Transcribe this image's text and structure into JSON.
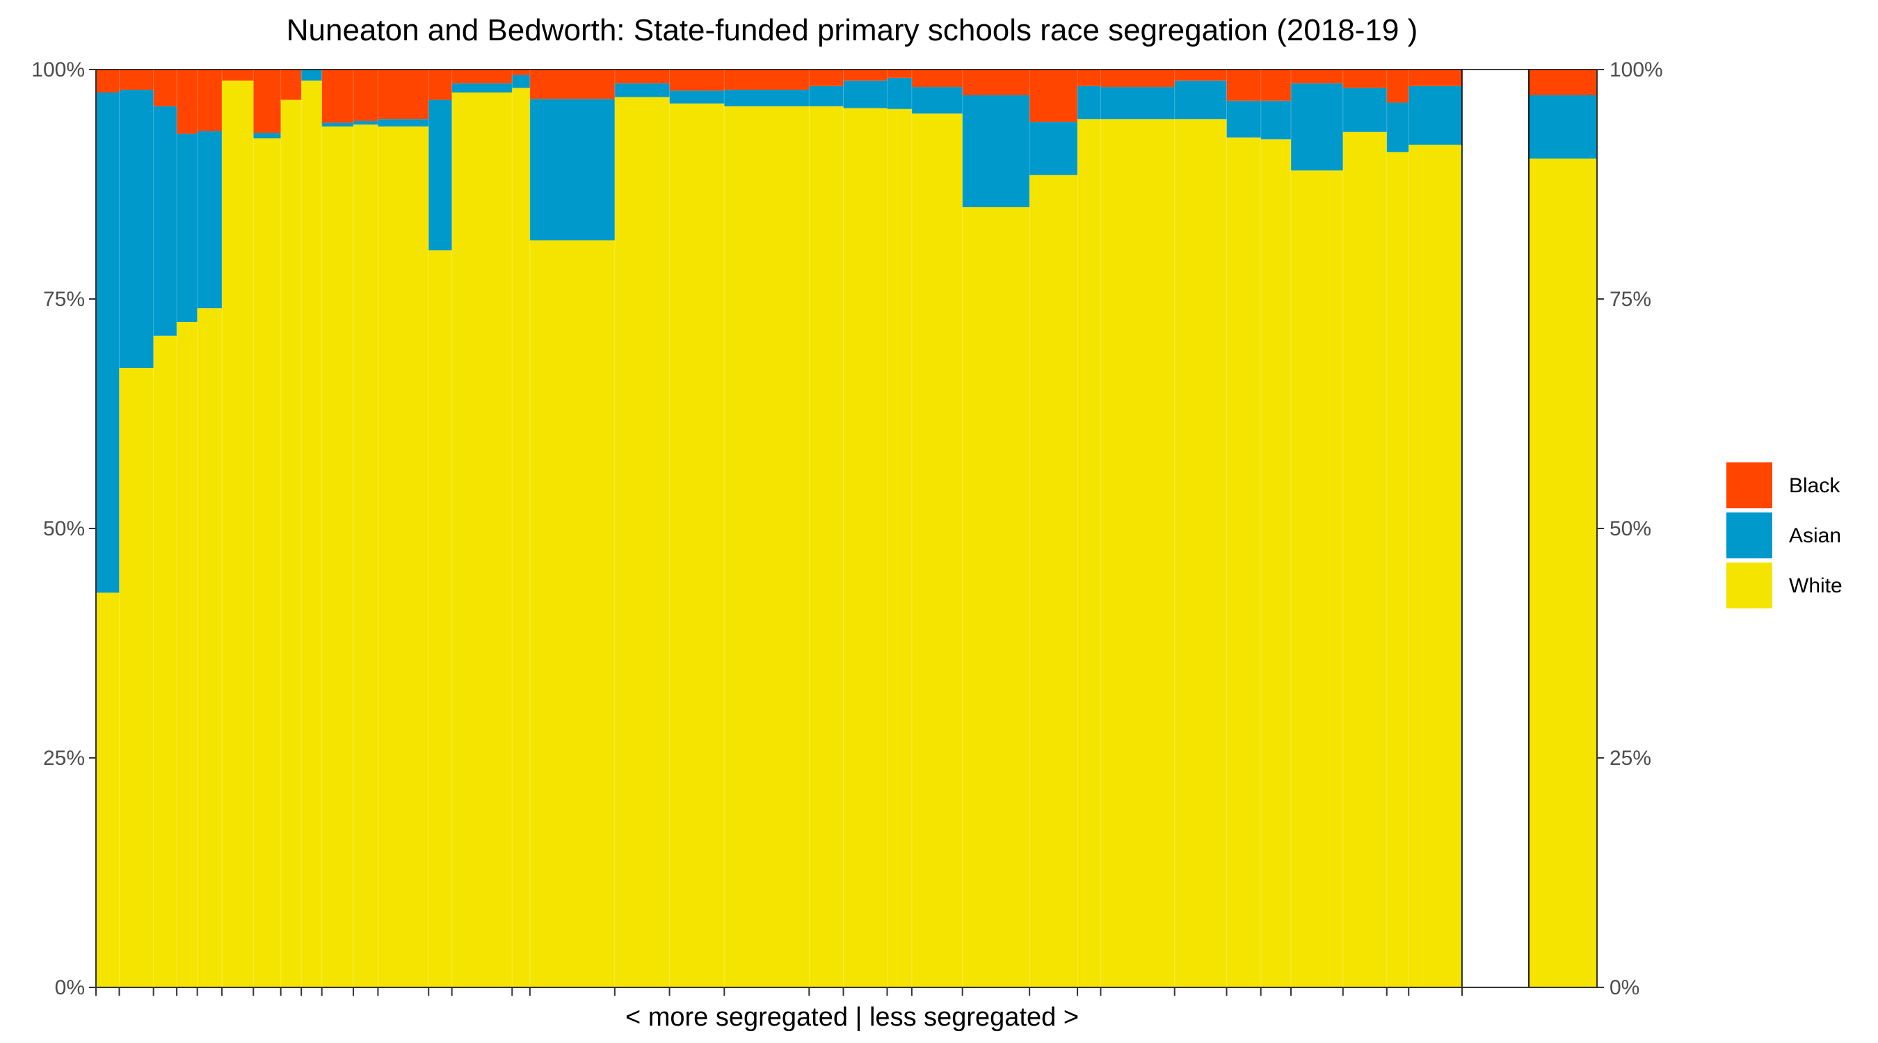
{
  "chart_data": {
    "type": "bar",
    "subtype": "variable-width stacked percentage (mosaic)",
    "title": "Nuneaton and Bedworth: State-funded primary schools race segregation (2018-19 )",
    "xlabel": "< more segregated | less segregated >",
    "ylabel": "",
    "ylim": [
      0,
      100
    ],
    "y_ticks": [
      "0%",
      "25%",
      "50%",
      "75%",
      "100%"
    ],
    "y_tick_values": [
      0,
      25,
      50,
      75,
      100
    ],
    "secondary_y_axis": true,
    "grid": false,
    "legend_position": "right",
    "legend": [
      {
        "name": "Black",
        "color": "#FF4500"
      },
      {
        "name": "Asian",
        "color": "#0099CC"
      },
      {
        "name": "White",
        "color": "#F5E400"
      }
    ],
    "x_scale_total": 100,
    "schools": [
      {
        "width": 1.7,
        "white": 43.0,
        "asian": 54.5
      },
      {
        "width": 2.5,
        "white": 67.5,
        "asian": 30.3
      },
      {
        "width": 1.7,
        "white": 71.0,
        "asian": 25.0
      },
      {
        "width": 1.5,
        "white": 72.5,
        "asian": 20.5
      },
      {
        "width": 1.8,
        "white": 74.0,
        "asian": 19.3
      },
      {
        "width": 2.3,
        "white": 98.8,
        "asian": 0.0
      },
      {
        "width": 2.0,
        "white": 92.5,
        "asian": 0.6
      },
      {
        "width": 1.5,
        "white": 96.7,
        "asian": 0.0
      },
      {
        "width": 1.5,
        "white": 98.8,
        "asian": 1.2
      },
      {
        "width": 2.3,
        "white": 93.8,
        "asian": 0.4
      },
      {
        "width": 1.8,
        "white": 94.0,
        "asian": 0.4
      },
      {
        "width": 3.7,
        "white": 93.8,
        "asian": 0.8
      },
      {
        "width": 1.7,
        "white": 80.3,
        "asian": 16.4
      },
      {
        "width": 4.4,
        "white": 97.5,
        "asian": 1.0
      },
      {
        "width": 1.3,
        "white": 98.0,
        "asian": 1.4
      },
      {
        "width": 6.2,
        "white": 81.4,
        "asian": 15.4
      },
      {
        "width": 4.0,
        "white": 97.0,
        "asian": 1.5
      },
      {
        "width": 4.0,
        "white": 96.3,
        "asian": 1.4
      },
      {
        "width": 6.2,
        "white": 96.0,
        "asian": 1.8
      },
      {
        "width": 2.5,
        "white": 96.0,
        "asian": 2.2
      },
      {
        "width": 3.2,
        "white": 95.8,
        "asian": 3.0
      },
      {
        "width": 1.8,
        "white": 95.7,
        "asian": 3.4
      },
      {
        "width": 3.7,
        "white": 95.2,
        "asian": 2.9
      },
      {
        "width": 4.9,
        "white": 85.0,
        "asian": 12.2
      },
      {
        "width": 3.5,
        "white": 88.5,
        "asian": 5.8
      },
      {
        "width": 1.7,
        "white": 94.6,
        "asian": 3.6
      },
      {
        "width": 5.4,
        "white": 94.6,
        "asian": 3.5
      },
      {
        "width": 3.8,
        "white": 94.6,
        "asian": 4.2
      },
      {
        "width": 2.5,
        "white": 92.6,
        "asian": 4.0
      },
      {
        "width": 2.2,
        "white": 92.4,
        "asian": 4.2
      },
      {
        "width": 3.8,
        "white": 89.0,
        "asian": 9.5
      },
      {
        "width": 3.2,
        "white": 93.2,
        "asian": 4.8
      },
      {
        "width": 1.6,
        "white": 91.0,
        "asian": 5.4
      },
      {
        "width": 3.9,
        "white": 91.8,
        "asian": 6.4
      }
    ],
    "average": {
      "white": 90.3,
      "asian": 6.9
    }
  }
}
